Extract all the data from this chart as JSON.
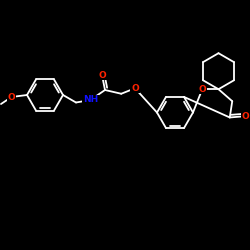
{
  "background_color": "#000000",
  "bond_color": "#ffffff",
  "O_color": "#ff2200",
  "N_color": "#1111ff",
  "bond_width": 1.3,
  "font_size": 6.5,
  "figsize": [
    2.5,
    2.5
  ],
  "dpi": 100,
  "xlim": [
    0,
    10
  ],
  "ylim": [
    0,
    10
  ]
}
